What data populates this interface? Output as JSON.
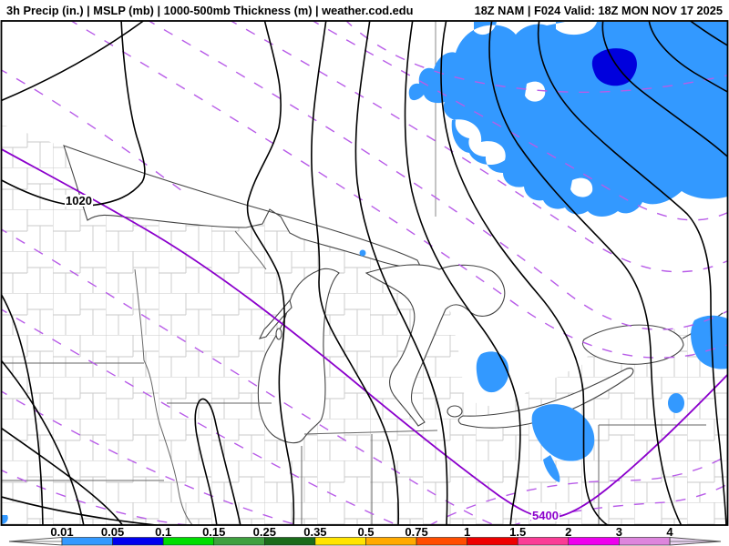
{
  "header": {
    "left": "3h Precip (in.) | MSLP (mb) | 1000-500mb Thickness (m) | weather.cod.edu",
    "right": "18Z NAM | F024 Valid: 18Z MON NOV 17 2025"
  },
  "map": {
    "isobar_label": "1020",
    "thickness_label": "5400"
  },
  "legend": {
    "title": "3h precipitation (in.)",
    "stops": [
      "0.01",
      "0.05",
      "0.1",
      "0.15",
      "0.25",
      "0.35",
      "0.5",
      "0.75",
      "1",
      "1.5",
      "2",
      "3",
      "4"
    ],
    "segment_colors": [
      "#3399FF",
      "#0000EE",
      "#00DD00",
      "#3FA03F",
      "#1A6B1A",
      "#FFE400",
      "#FFAA00",
      "#FF4D00",
      "#EE0000",
      "#FA3C96",
      "#EE00EE",
      "#DD85DD"
    ]
  },
  "colors": {
    "precip-light": "#3399FF",
    "precip-dark": "#0000DD",
    "thickness-solid": "#8B00CC",
    "thickness-dash": "#B85CE8",
    "isobar": "#000000",
    "county": "#C9C9C9",
    "state": "#666666",
    "shore": "#444444"
  }
}
